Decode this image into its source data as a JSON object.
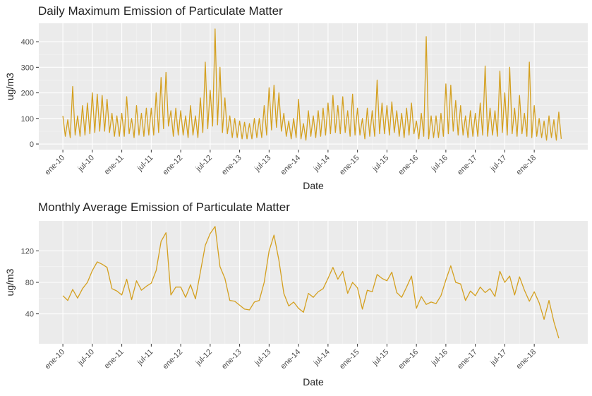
{
  "chart_data": [
    {
      "type": "line",
      "title": "Daily Maximum Emission of Particulate Matter",
      "x_label": "Date",
      "y_label": "ug/m3",
      "color": "#D4A020",
      "grid": true,
      "xlim": [
        -4.9,
        106.9
      ],
      "ylim": [
        -22,
        472
      ],
      "xticks": [
        {
          "value": 0,
          "label": "ene-10"
        },
        {
          "value": 6,
          "label": "jul-10"
        },
        {
          "value": 12,
          "label": "ene-11"
        },
        {
          "value": 18,
          "label": "jul-11"
        },
        {
          "value": 24,
          "label": "ene-12"
        },
        {
          "value": 30,
          "label": "jul-12"
        },
        {
          "value": 36,
          "label": "ene-13"
        },
        {
          "value": 42,
          "label": "jul-13"
        },
        {
          "value": 48,
          "label": "ene-14"
        },
        {
          "value": 54,
          "label": "jul-14"
        },
        {
          "value": 60,
          "label": "ene-15"
        },
        {
          "value": 66,
          "label": "jul-15"
        },
        {
          "value": 72,
          "label": "ene-16"
        },
        {
          "value": 78,
          "label": "jul-16"
        },
        {
          "value": 84,
          "label": "ene-17"
        },
        {
          "value": 90,
          "label": "jul-17"
        },
        {
          "value": 96,
          "label": "ene-18"
        }
      ],
      "yticks": [
        0,
        100,
        200,
        300,
        400
      ],
      "x": [
        0,
        0.5,
        1,
        1.5,
        2,
        2.5,
        3,
        3.5,
        4,
        4.5,
        5,
        5.5,
        6,
        6.5,
        7,
        7.5,
        8,
        8.5,
        9,
        9.5,
        10,
        10.5,
        11,
        11.5,
        12,
        12.5,
        13,
        13.5,
        14,
        14.5,
        15,
        15.5,
        16,
        16.5,
        17,
        17.5,
        18,
        18.5,
        19,
        19.5,
        20,
        20.5,
        21,
        21.5,
        22,
        22.5,
        23,
        23.5,
        24,
        24.5,
        25,
        25.5,
        26,
        26.5,
        27,
        27.5,
        28,
        28.5,
        29,
        29.5,
        30,
        30.5,
        31,
        31.5,
        32,
        32.5,
        33,
        33.5,
        34,
        34.5,
        35,
        35.5,
        36,
        36.5,
        37,
        37.5,
        38,
        38.5,
        39,
        39.5,
        40,
        40.5,
        41,
        41.5,
        42,
        42.5,
        43,
        43.5,
        44,
        44.5,
        45,
        45.5,
        46,
        46.5,
        47,
        47.5,
        48,
        48.5,
        49,
        49.5,
        50,
        50.5,
        51,
        51.5,
        52,
        52.5,
        53,
        53.5,
        54,
        54.5,
        55,
        55.5,
        56,
        56.5,
        57,
        57.5,
        58,
        58.5,
        59,
        59.5,
        60,
        60.5,
        61,
        61.5,
        62,
        62.5,
        63,
        63.5,
        64,
        64.5,
        65,
        65.5,
        66,
        66.5,
        67,
        67.5,
        68,
        68.5,
        69,
        69.5,
        70,
        70.5,
        71,
        71.5,
        72,
        72.5,
        73,
        73.5,
        74,
        74.5,
        75,
        75.5,
        76,
        76.5,
        77,
        77.5,
        78,
        78.5,
        79,
        79.5,
        80,
        80.5,
        81,
        81.5,
        82,
        82.5,
        83,
        83.5,
        84,
        84.5,
        85,
        85.5,
        86,
        86.5,
        87,
        87.5,
        88,
        88.5,
        89,
        89.5,
        90,
        90.5,
        91,
        91.5,
        92,
        92.5,
        93,
        93.5,
        94,
        94.5,
        95,
        95.5,
        96,
        96.5,
        97,
        97.5,
        98,
        98.5,
        99,
        99.5,
        100,
        100.5,
        101,
        101.5
      ],
      "values": [
        110,
        30,
        95,
        25,
        225,
        35,
        110,
        30,
        150,
        35,
        160,
        40,
        200,
        45,
        195,
        50,
        190,
        50,
        175,
        45,
        120,
        30,
        110,
        30,
        120,
        30,
        185,
        40,
        100,
        25,
        150,
        35,
        120,
        30,
        140,
        35,
        140,
        35,
        200,
        45,
        260,
        60,
        280,
        70,
        130,
        30,
        140,
        35,
        130,
        35,
        110,
        25,
        150,
        35,
        110,
        25,
        180,
        45,
        320,
        60,
        210,
        70,
        450,
        75,
        300,
        45,
        180,
        40,
        110,
        25,
        100,
        25,
        90,
        20,
        85,
        20,
        80,
        20,
        100,
        25,
        100,
        25,
        150,
        35,
        220,
        55,
        230,
        65,
        200,
        50,
        120,
        30,
        90,
        20,
        100,
        25,
        175,
        20,
        80,
        15,
        130,
        30,
        110,
        25,
        130,
        30,
        140,
        35,
        160,
        40,
        190,
        45,
        150,
        40,
        185,
        45,
        130,
        30,
        195,
        35,
        140,
        35,
        100,
        20,
        140,
        30,
        130,
        30,
        250,
        40,
        160,
        40,
        150,
        35,
        165,
        45,
        130,
        30,
        120,
        25,
        140,
        35,
        160,
        40,
        90,
        20,
        120,
        30,
        420,
        20,
        110,
        25,
        110,
        25,
        120,
        30,
        235,
        40,
        230,
        50,
        170,
        35,
        150,
        35,
        110,
        25,
        130,
        30,
        120,
        30,
        160,
        35,
        305,
        30,
        140,
        35,
        130,
        30,
        285,
        45,
        200,
        35,
        300,
        40,
        140,
        30,
        190,
        40,
        120,
        30,
        320,
        25,
        150,
        30,
        100,
        25,
        90,
        15,
        110,
        25,
        95,
        15,
        125,
        20
      ]
    },
    {
      "type": "line",
      "title": "Monthly Average Emission of Particulate Matter",
      "x_label": "Date",
      "y_label": "ug/m3",
      "color": "#D4A020",
      "grid": true,
      "xlim": [
        -4.9,
        106.9
      ],
      "ylim": [
        2,
        158
      ],
      "xticks": [
        {
          "value": 0,
          "label": "ene-10"
        },
        {
          "value": 6,
          "label": "jul-10"
        },
        {
          "value": 12,
          "label": "ene-11"
        },
        {
          "value": 18,
          "label": "jul-11"
        },
        {
          "value": 24,
          "label": "ene-12"
        },
        {
          "value": 30,
          "label": "jul-12"
        },
        {
          "value": 36,
          "label": "ene-13"
        },
        {
          "value": 42,
          "label": "jul-13"
        },
        {
          "value": 48,
          "label": "ene-14"
        },
        {
          "value": 54,
          "label": "jul-14"
        },
        {
          "value": 60,
          "label": "ene-15"
        },
        {
          "value": 66,
          "label": "jul-15"
        },
        {
          "value": 72,
          "label": "ene-16"
        },
        {
          "value": 78,
          "label": "jul-16"
        },
        {
          "value": 84,
          "label": "ene-17"
        },
        {
          "value": 90,
          "label": "jul-17"
        },
        {
          "value": 96,
          "label": "ene-18"
        }
      ],
      "yticks": [
        40,
        80,
        120
      ],
      "x": [
        0,
        1,
        2,
        3,
        4,
        5,
        6,
        7,
        8,
        9,
        10,
        11,
        12,
        13,
        14,
        15,
        16,
        17,
        18,
        19,
        20,
        21,
        22,
        23,
        24,
        25,
        26,
        27,
        28,
        29,
        30,
        31,
        32,
        33,
        34,
        35,
        36,
        37,
        38,
        39,
        40,
        41,
        42,
        43,
        44,
        45,
        46,
        47,
        48,
        49,
        50,
        51,
        52,
        53,
        54,
        55,
        56,
        57,
        58,
        59,
        60,
        61,
        62,
        63,
        64,
        65,
        66,
        67,
        68,
        69,
        70,
        71,
        72,
        73,
        74,
        75,
        76,
        77,
        78,
        79,
        80,
        81,
        82,
        83,
        84,
        85,
        86,
        87,
        88,
        89,
        90,
        91,
        92,
        93,
        94,
        95,
        96,
        97,
        98,
        99,
        100,
        101
      ],
      "values": [
        63,
        57,
        71,
        60,
        72,
        80,
        95,
        106,
        103,
        99,
        72,
        69,
        64,
        84,
        58,
        82,
        70,
        75,
        79,
        95,
        132,
        143,
        64,
        74,
        74,
        61,
        77,
        59,
        93,
        127,
        142,
        151,
        100,
        85,
        57,
        56,
        51,
        46,
        45,
        55,
        57,
        80,
        120,
        140,
        108,
        66,
        50,
        55,
        47,
        42,
        66,
        61,
        68,
        72,
        85,
        99,
        84,
        94,
        66,
        80,
        73,
        46,
        70,
        68,
        90,
        85,
        82,
        93,
        67,
        61,
        74,
        88,
        47,
        62,
        52,
        55,
        53,
        63,
        83,
        101,
        80,
        78,
        57,
        69,
        63,
        74,
        67,
        72,
        62,
        94,
        80,
        88,
        64,
        87,
        70,
        56,
        68,
        54,
        33,
        57,
        30,
        9
      ]
    }
  ]
}
